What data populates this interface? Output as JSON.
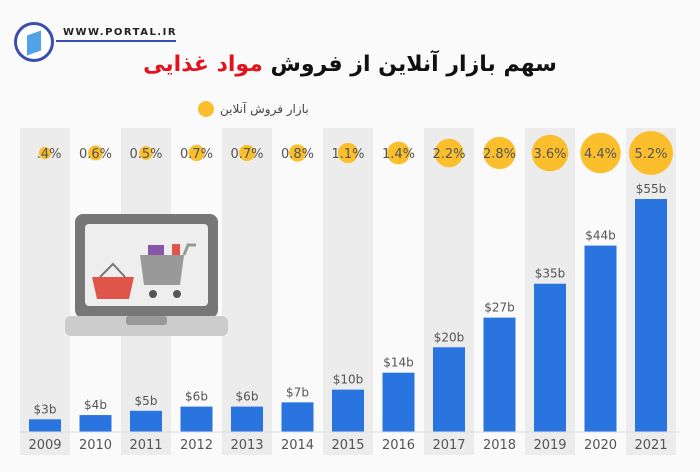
{
  "header": {
    "site": "WWW.PORTAL.IR",
    "title_main": "سهم بازار آنلاین از فروش",
    "title_highlight": "مواد غذایی",
    "legend": "بازار فروش آنلاین"
  },
  "colors": {
    "bar": "#2a74e0",
    "bubble": "#fbbf2e",
    "highlight": "#e0141e",
    "stripe": "#ececec"
  },
  "icons": [
    "logo",
    "laptop-shopping-cart-illustration"
  ],
  "chart_data": {
    "type": "bar",
    "categories": [
      "2009",
      "2010",
      "2011",
      "2012",
      "2013",
      "2014",
      "2015",
      "2016",
      "2017",
      "2018",
      "2019",
      "2020",
      "2021"
    ],
    "series": [
      {
        "name": "",
        "unit": "$b",
        "values": [
          3,
          4,
          5,
          6,
          6,
          7,
          10,
          14,
          20,
          27,
          35,
          44,
          55
        ],
        "labels": [
          "$3b",
          "$4b",
          "$5b",
          "$6b",
          "$6b",
          "$7b",
          "$10b",
          "$14b",
          "$20b",
          "$27b",
          "$35b",
          "$44b",
          "$55b"
        ]
      },
      {
        "name": "بازار فروش آنلاین",
        "unit": "%",
        "values": [
          0.4,
          0.6,
          0.5,
          0.7,
          0.7,
          0.8,
          1.1,
          1.4,
          2.2,
          2.8,
          3.6,
          4.4,
          5.2
        ],
        "labels": [
          "0.4%",
          "0.6%",
          "0.5%",
          "0.7%",
          "0.7%",
          "0.8%",
          "1.1%",
          "1.4%",
          "2.2%",
          "2.8%",
          "3.6%",
          "4.4%",
          "5.2%"
        ]
      }
    ],
    "ylim": [
      0,
      55
    ],
    "legend": "top-left"
  }
}
